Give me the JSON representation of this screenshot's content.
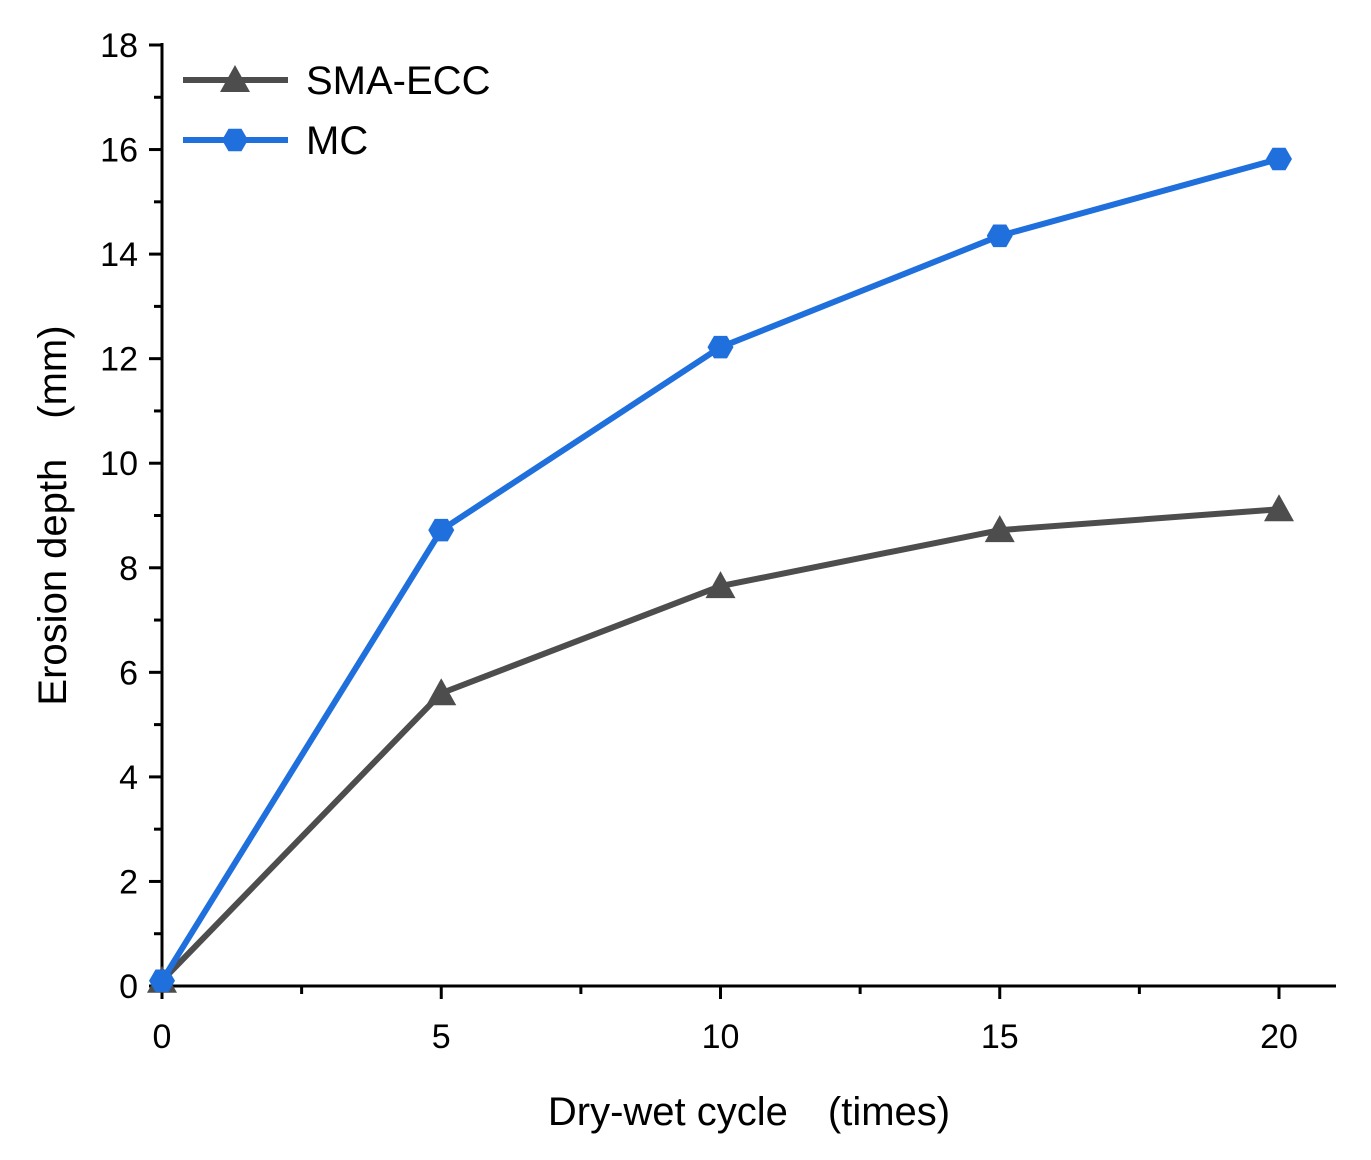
{
  "chart_data": {
    "type": "line",
    "title": "",
    "xlabel": "Dry-wet cycle　(times)",
    "ylabel": "Erosion depth　(mm)",
    "xlim": [
      0,
      21
    ],
    "ylim": [
      0,
      18
    ],
    "x_ticks": [
      0,
      5,
      10,
      15,
      20
    ],
    "y_ticks": [
      0,
      2,
      4,
      6,
      8,
      10,
      12,
      14,
      16,
      18
    ],
    "x_tick_labels": [
      "0",
      "5",
      "10",
      "15",
      "20"
    ],
    "y_tick_labels": [
      "0",
      "2",
      "4",
      "6",
      "8",
      "10",
      "12",
      "14",
      "16",
      "18"
    ],
    "x": [
      0,
      5,
      10,
      15,
      20
    ],
    "series": [
      {
        "name": "SMA-ECC",
        "values": [
          0.1,
          5.6,
          7.65,
          8.72,
          9.12
        ],
        "color": "#4d4d4d",
        "marker": "triangle"
      },
      {
        "name": "MC",
        "values": [
          0.1,
          8.72,
          12.22,
          14.35,
          15.82
        ],
        "color": "#1f6fdc",
        "marker": "hexagon"
      }
    ],
    "legend": {
      "position": "top-left"
    },
    "grid": false
  }
}
